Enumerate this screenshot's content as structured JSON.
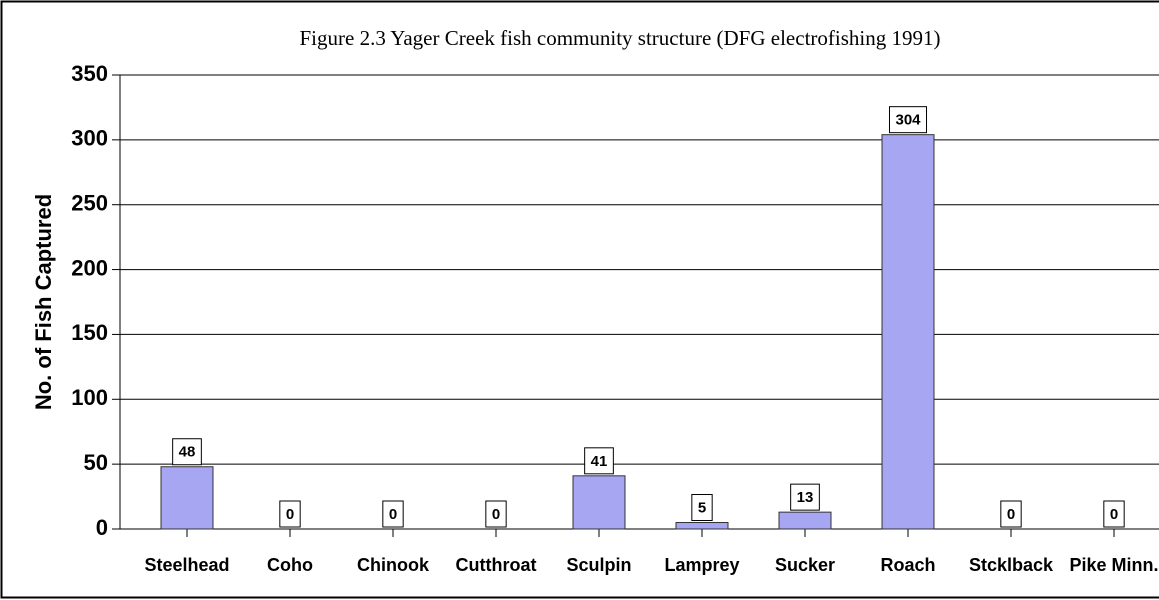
{
  "chart_data": {
    "type": "bar",
    "title": "Figure 2.3    Yager Creek fish community structure (DFG electrofishing 1991)",
    "y_label": "No. of Fish Captured",
    "categories": [
      "Steelhead",
      "Coho",
      "Chinook",
      "Cutthroat",
      "Sculpin",
      "Lamprey",
      "Sucker",
      "Roach",
      "Stcklback",
      "Pike Minn."
    ],
    "values": [
      48,
      0,
      0,
      0,
      41,
      5,
      13,
      304,
      0,
      0
    ],
    "color": "#a6a6f2",
    "ylim": [
      0,
      350
    ],
    "yticks": [
      0,
      50,
      100,
      150,
      200,
      250,
      300,
      350
    ],
    "grid": true
  }
}
